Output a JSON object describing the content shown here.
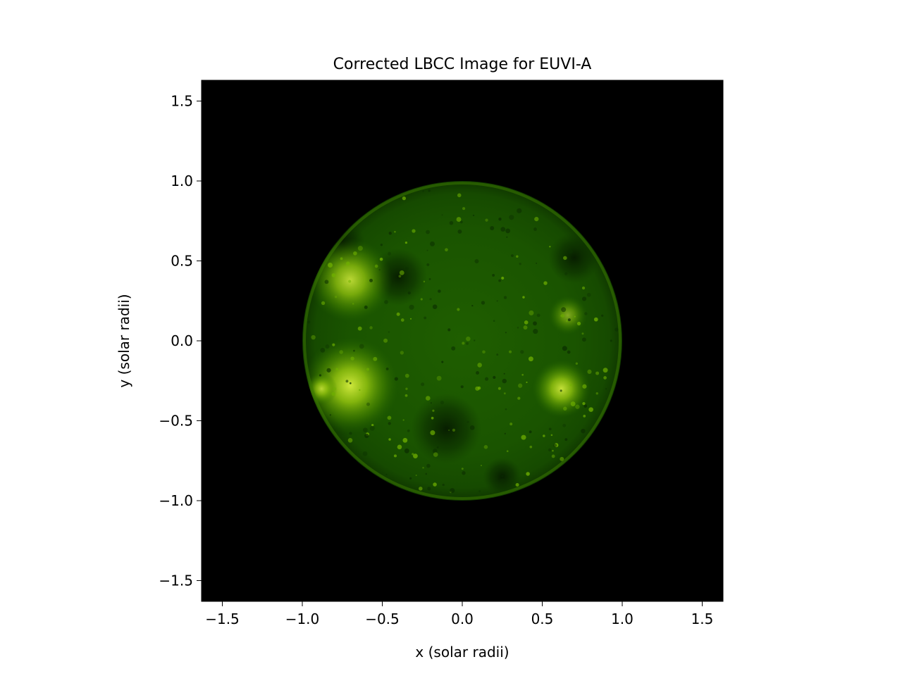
{
  "figure": {
    "title": "Corrected LBCC Image for EUVI-A",
    "xlabel": "x (solar radii)",
    "ylabel": "y (solar radii)",
    "background_color": "#000000",
    "colormap": [
      "#000000",
      "#0d3a00",
      "#2a6a00",
      "#4f9400",
      "#8cc000",
      "#d0ee3a"
    ]
  },
  "chart_data": {
    "type": "image",
    "title": "Corrected LBCC Image for EUVI-A",
    "xlabel": "x (solar radii)",
    "ylabel": "y (solar radii)",
    "xlim": [
      -1.63,
      1.63
    ],
    "ylim": [
      -1.63,
      1.63
    ],
    "x_ticks": [
      -1.5,
      -1.0,
      -0.5,
      0.0,
      0.5,
      1.0,
      1.5
    ],
    "x_tick_labels": [
      "−1.5",
      "−1.0",
      "−0.5",
      "0.0",
      "0.5",
      "1.0",
      "1.5"
    ],
    "y_ticks": [
      1.5,
      1.0,
      0.5,
      0.0,
      -0.5,
      -1.0,
      -1.5
    ],
    "y_tick_labels": [
      "1.5",
      "1.0",
      "0.5",
      "0.0",
      "−0.5",
      "−1.0",
      "−1.5"
    ],
    "solar_disk": {
      "center": [
        0.0,
        0.0
      ],
      "radius": 1.0
    },
    "bright_regions": [
      {
        "x": -0.7,
        "y": -0.28,
        "r": 0.3,
        "intensity": 0.95
      },
      {
        "x": -0.7,
        "y": 0.38,
        "r": 0.26,
        "intensity": 0.85
      },
      {
        "x": 0.62,
        "y": -0.3,
        "r": 0.18,
        "intensity": 0.9
      },
      {
        "x": 0.66,
        "y": 0.16,
        "r": 0.12,
        "intensity": 0.55
      },
      {
        "x": -0.88,
        "y": -0.3,
        "r": 0.1,
        "intensity": 0.8
      }
    ],
    "dark_regions": [
      {
        "x": -0.4,
        "y": 0.4,
        "r": 0.18
      },
      {
        "x": 0.7,
        "y": 0.52,
        "r": 0.16
      },
      {
        "x": -0.75,
        "y": 0.62,
        "r": 0.14
      },
      {
        "x": -0.1,
        "y": -0.55,
        "r": 0.22
      },
      {
        "x": 0.25,
        "y": -0.85,
        "r": 0.12
      }
    ]
  }
}
